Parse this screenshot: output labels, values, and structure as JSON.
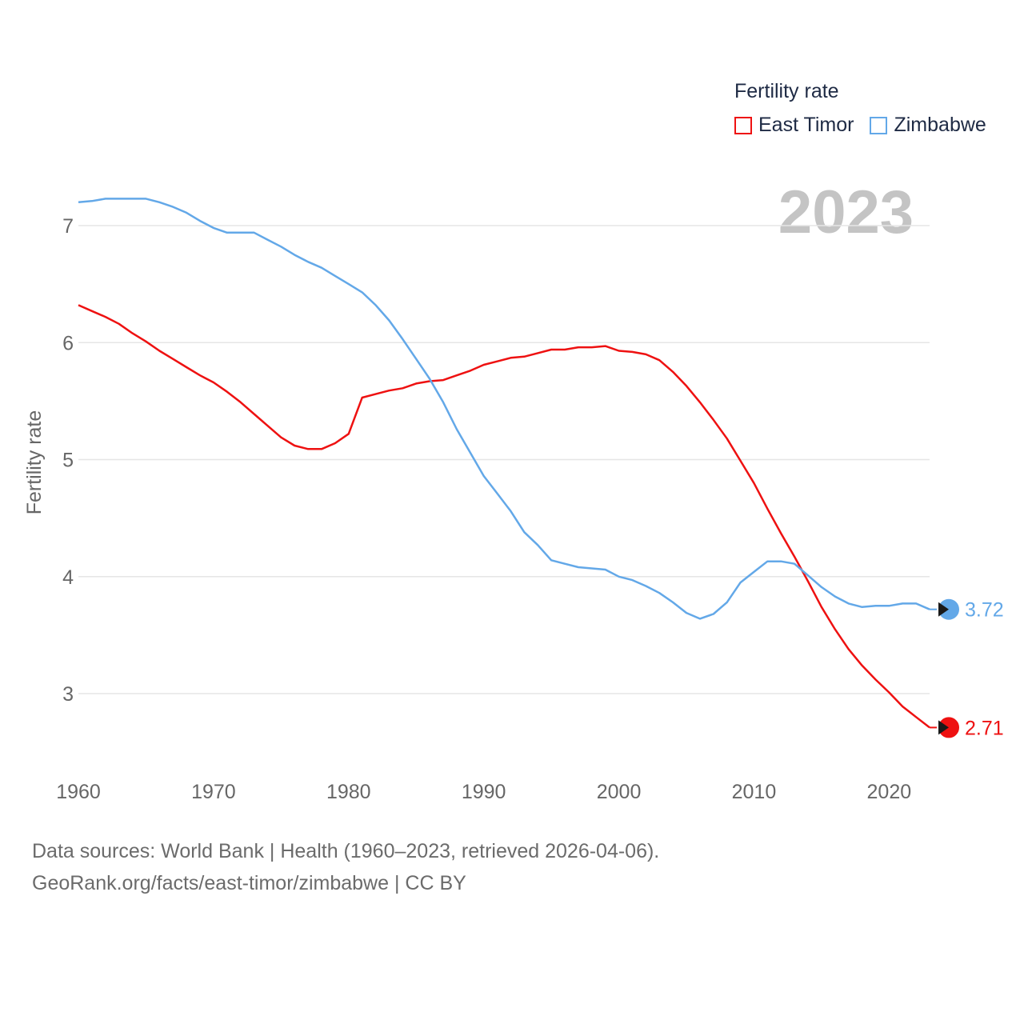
{
  "legend": {
    "title": "Fertility rate",
    "items": [
      {
        "name": "East Timor",
        "color": "#ee1111"
      },
      {
        "name": "Zimbabwe",
        "color": "#63a8e8"
      }
    ]
  },
  "current_year": "2023",
  "footer": {
    "line1": "Data sources: World Bank | Health (1960–2023, retrieved 2026-04-06).",
    "line2": "GeoRank.org/facts/east-timor/zimbabwe | CC BY"
  },
  "chart_data": {
    "type": "line",
    "title": "Fertility rate",
    "xlabel": "",
    "ylabel": "Fertility rate",
    "xlim": [
      1960,
      2023
    ],
    "ylim": [
      2.4,
      7.55
    ],
    "yticks": [
      3,
      4,
      5,
      6,
      7
    ],
    "xticks": [
      1960,
      1970,
      1980,
      1990,
      2000,
      2010,
      2020
    ],
    "grid": true,
    "legend_position": "top-right",
    "x": [
      1960,
      1961,
      1962,
      1963,
      1964,
      1965,
      1966,
      1967,
      1968,
      1969,
      1970,
      1971,
      1972,
      1973,
      1974,
      1975,
      1976,
      1977,
      1978,
      1979,
      1980,
      1981,
      1982,
      1983,
      1984,
      1985,
      1986,
      1987,
      1988,
      1989,
      1990,
      1991,
      1992,
      1993,
      1994,
      1995,
      1996,
      1997,
      1998,
      1999,
      2000,
      2001,
      2002,
      2003,
      2004,
      2005,
      2006,
      2007,
      2008,
      2009,
      2010,
      2011,
      2012,
      2013,
      2014,
      2015,
      2016,
      2017,
      2018,
      2019,
      2020,
      2021,
      2022,
      2023
    ],
    "series": [
      {
        "name": "East Timor",
        "color": "#ee1111",
        "end_label": "2.71",
        "values": [
          6.32,
          6.27,
          6.22,
          6.16,
          6.08,
          6.01,
          5.93,
          5.86,
          5.79,
          5.72,
          5.66,
          5.58,
          5.49,
          5.39,
          5.29,
          5.19,
          5.12,
          5.09,
          5.09,
          5.14,
          5.22,
          5.53,
          5.56,
          5.59,
          5.61,
          5.65,
          5.67,
          5.68,
          5.72,
          5.76,
          5.81,
          5.84,
          5.87,
          5.88,
          5.91,
          5.94,
          5.94,
          5.96,
          5.96,
          5.97,
          5.93,
          5.92,
          5.9,
          5.85,
          5.75,
          5.63,
          5.49,
          5.34,
          5.18,
          4.99,
          4.8,
          4.58,
          4.37,
          4.17,
          3.96,
          3.74,
          3.55,
          3.38,
          3.24,
          3.12,
          3.01,
          2.89,
          2.8,
          2.71
        ]
      },
      {
        "name": "Zimbabwe",
        "color": "#63a8e8",
        "end_label": "3.72",
        "values": [
          7.2,
          7.21,
          7.23,
          7.23,
          7.23,
          7.23,
          7.2,
          7.16,
          7.11,
          7.04,
          6.98,
          6.94,
          6.94,
          6.94,
          6.88,
          6.82,
          6.75,
          6.69,
          6.64,
          6.57,
          6.5,
          6.43,
          6.32,
          6.19,
          6.03,
          5.86,
          5.69,
          5.49,
          5.26,
          5.06,
          4.86,
          4.71,
          4.56,
          4.38,
          4.27,
          4.14,
          4.11,
          4.08,
          4.07,
          4.06,
          4.0,
          3.97,
          3.92,
          3.86,
          3.78,
          3.69,
          3.64,
          3.68,
          3.78,
          3.95,
          4.04,
          4.13,
          4.13,
          4.11,
          4.01,
          3.91,
          3.83,
          3.77,
          3.74,
          3.75,
          3.75,
          3.77,
          3.77,
          3.72
        ]
      }
    ]
  }
}
